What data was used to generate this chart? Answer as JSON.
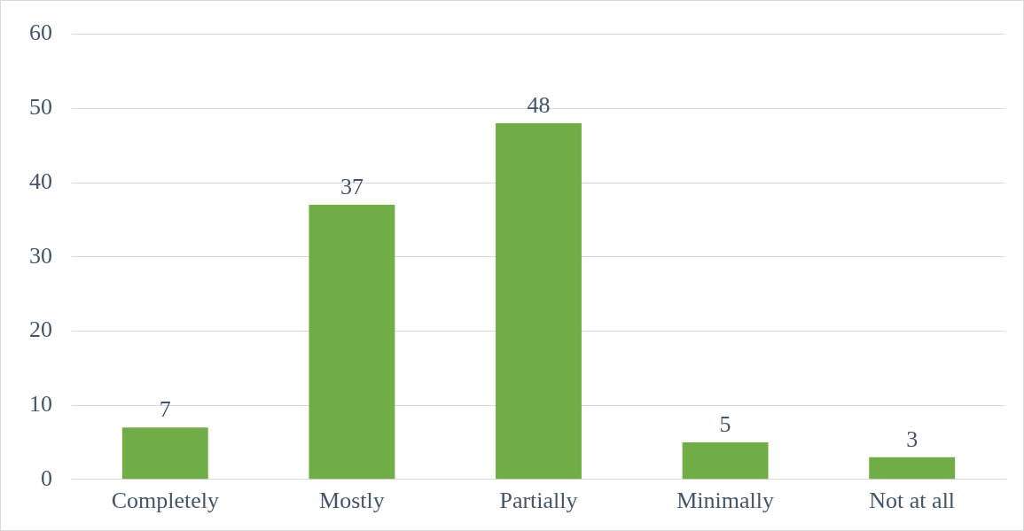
{
  "chart_data": {
    "type": "bar",
    "categories": [
      "Completely",
      "Mostly",
      "Partially",
      "Minimally",
      "Not at all"
    ],
    "values": [
      7,
      37,
      48,
      5,
      3
    ],
    "color": "#70ad47",
    "ylim": [
      0,
      60
    ],
    "yticks": [
      0,
      10,
      20,
      30,
      40,
      50,
      60
    ],
    "grid": "y",
    "legend": false,
    "data_labels": true
  }
}
